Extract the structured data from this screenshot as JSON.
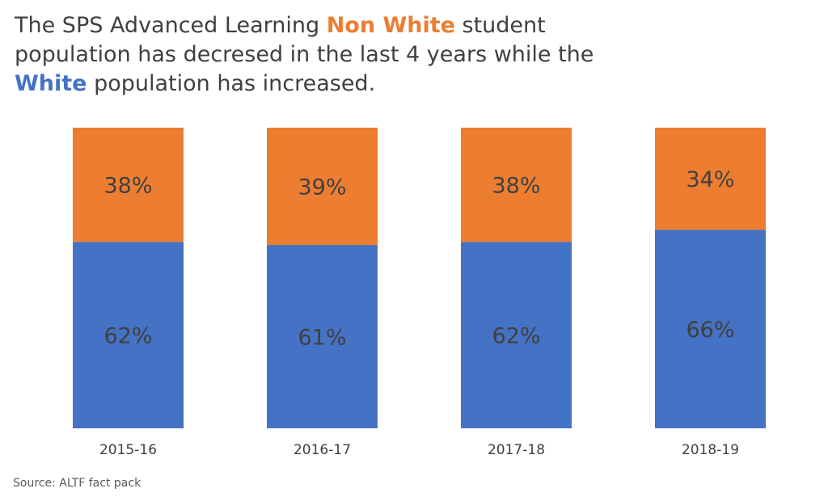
{
  "title": {
    "part1": "The SPS Advanced Learning ",
    "highlight1": "Non White",
    "part2": " student population has decresed in the last 4 years while the ",
    "highlight2": "White",
    "part3": " population has increased."
  },
  "colors": {
    "non_white": "#ED7D31",
    "white": "#4472C4",
    "text": "#404040"
  },
  "source": "Source:  ALTF fact pack",
  "chart_data": {
    "type": "bar",
    "stacked": true,
    "categories": [
      "2015-16",
      "2016-17",
      "2017-18",
      "2018-19"
    ],
    "series": [
      {
        "name": "White",
        "values": [
          62,
          61,
          62,
          66
        ],
        "labels": [
          "62%",
          "61%",
          "62%",
          "66%"
        ]
      },
      {
        "name": "Non White",
        "values": [
          38,
          39,
          38,
          34
        ],
        "labels": [
          "38%",
          "39%",
          "38%",
          "34%"
        ]
      }
    ],
    "ylim": [
      0,
      100
    ],
    "grid": false,
    "legend": "none"
  }
}
